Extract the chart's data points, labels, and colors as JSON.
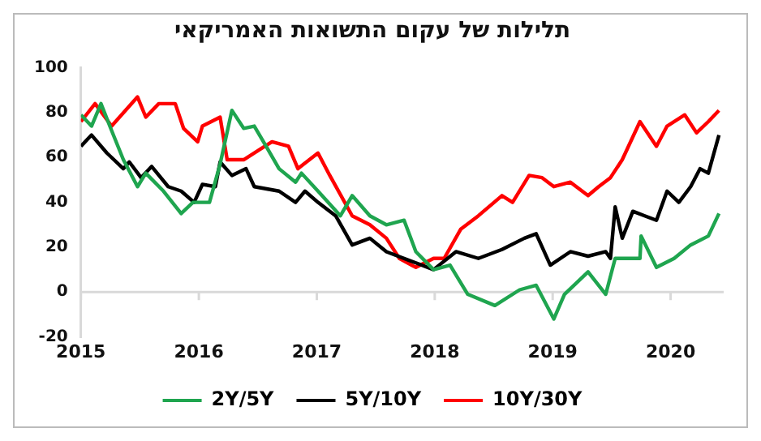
{
  "chart_data": {
    "type": "line",
    "title": "תלילות של עקום התשואות האמריקאי",
    "xlim": [
      2015,
      2020.45
    ],
    "xticks": [
      2015,
      2016,
      2017,
      2018,
      2019,
      2020
    ],
    "ylim": [
      -20,
      100
    ],
    "yticks": [
      -20,
      0,
      20,
      40,
      60,
      80,
      100
    ],
    "grid": false,
    "legend": "bottom",
    "ref_lines": [
      {
        "axis": "y",
        "value": 0,
        "color": "#d9d9d9"
      }
    ],
    "series": [
      {
        "name": "2Y/5Y",
        "color": "#1fa54f",
        "x": [
          2015,
          2015.09,
          2015.17,
          2015.26,
          2015.36,
          2015.48,
          2015.55,
          2015.7,
          2015.85,
          2015.95,
          2016.09,
          2016.18,
          2016.28,
          2016.38,
          2016.47,
          2016.57,
          2016.68,
          2016.82,
          2016.87,
          2017.01,
          2017.2,
          2017.3,
          2017.45,
          2017.59,
          2017.74,
          2017.84,
          2017.99,
          2018.13,
          2018.28,
          2018.51,
          2018.72,
          2018.86,
          2019.01,
          2019.1,
          2019.3,
          2019.45,
          2019.53,
          2019.74,
          2019.75,
          2019.88,
          2020.03,
          2020.17,
          2020.32,
          2020.41
        ],
        "values": [
          79,
          74,
          84,
          72,
          59,
          47,
          53,
          45,
          35,
          40,
          40,
          57,
          81,
          73,
          74,
          65,
          55,
          49,
          53,
          45,
          34,
          43,
          34,
          30,
          32,
          18,
          10,
          12,
          -1,
          -6,
          1,
          3,
          -12,
          -1,
          9,
          -1,
          15,
          15,
          25,
          11,
          15,
          21,
          25,
          35
        ]
      },
      {
        "name": "5Y/10Y",
        "color": "#000000",
        "x": [
          2015,
          2015.09,
          2015.22,
          2015.36,
          2015.41,
          2015.51,
          2015.6,
          2015.74,
          2015.85,
          2015.96,
          2016.03,
          2016.14,
          2016.18,
          2016.28,
          2016.4,
          2016.47,
          2016.68,
          2016.82,
          2016.9,
          2017.01,
          2017.16,
          2017.3,
          2017.45,
          2017.59,
          2017.84,
          2017.99,
          2018.18,
          2018.37,
          2018.57,
          2018.76,
          2018.86,
          2018.98,
          2019.15,
          2019.3,
          2019.45,
          2019.49,
          2019.53,
          2019.59,
          2019.68,
          2019.78,
          2019.88,
          2019.97,
          2020.07,
          2020.17,
          2020.25,
          2020.32,
          2020.41
        ],
        "values": [
          65,
          70,
          62,
          55,
          58,
          51,
          56,
          47,
          45,
          40,
          48,
          47,
          58,
          52,
          55,
          47,
          45,
          40,
          45,
          40,
          34,
          21,
          24,
          18,
          13,
          10,
          18,
          15,
          19,
          24,
          26,
          12,
          18,
          16,
          18,
          15,
          38,
          24,
          36,
          34,
          32,
          45,
          40,
          47,
          55,
          53,
          70
        ]
      },
      {
        "name": "10Y/30Y",
        "color": "#ff0000",
        "x": [
          2015,
          2015.12,
          2015.26,
          2015.48,
          2015.55,
          2015.66,
          2015.8,
          2015.87,
          2015.99,
          2016.03,
          2016.18,
          2016.24,
          2016.38,
          2016.53,
          2016.62,
          2016.76,
          2016.84,
          2017.01,
          2017.11,
          2017.3,
          2017.45,
          2017.59,
          2017.7,
          2017.84,
          2017.99,
          2018.08,
          2018.22,
          2018.37,
          2018.57,
          2018.66,
          2018.8,
          2018.91,
          2019.01,
          2019.15,
          2019.3,
          2019.39,
          2019.49,
          2019.59,
          2019.74,
          2019.88,
          2019.97,
          2020.12,
          2020.22,
          2020.32,
          2020.41
        ],
        "values": [
          76,
          84,
          74,
          87,
          78,
          84,
          84,
          73,
          67,
          74,
          78,
          59,
          59,
          64,
          67,
          65,
          55,
          62,
          52,
          34,
          30,
          24,
          15,
          11,
          15,
          15,
          28,
          34,
          43,
          40,
          52,
          51,
          47,
          49,
          43,
          47,
          51,
          59,
          76,
          65,
          74,
          79,
          71,
          76,
          81
        ]
      }
    ]
  }
}
